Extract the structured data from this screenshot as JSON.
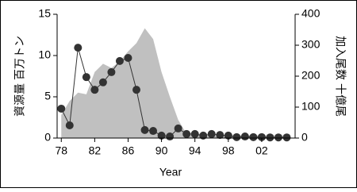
{
  "chart_data": {
    "type": "area-line",
    "x_label": "Year",
    "y_label": "資源量 百万トン",
    "y2_label": "加入尾数 十億尾",
    "x": [
      1978,
      1979,
      1980,
      1981,
      1982,
      1983,
      1984,
      1985,
      1986,
      1987,
      1988,
      1989,
      1990,
      1991,
      1992,
      1993,
      1994,
      1995,
      1996,
      1997,
      1998,
      1999,
      2000,
      2001,
      2002,
      2003,
      2004,
      2005
    ],
    "series": [
      {
        "type": "area",
        "axis": "y",
        "color": "#c0c0c0",
        "values": [
          2.8,
          4.5,
          5.5,
          5.3,
          8,
          9,
          8.5,
          9.3,
          10.5,
          11.5,
          13.3,
          12,
          8,
          5,
          2.2,
          0.5,
          0.4,
          0.3,
          0.3,
          0.3,
          0.3,
          0.3,
          0.3,
          0.3,
          0.3,
          0.3,
          0.3,
          0.3
        ]
      },
      {
        "type": "line",
        "axis": "y2",
        "color": "#333333",
        "values": [
          95,
          41,
          292,
          197,
          156,
          180,
          213,
          249,
          259,
          156,
          26,
          23,
          8,
          5,
          31,
          13,
          13,
          8,
          13,
          10,
          8,
          3,
          5,
          3,
          3,
          2,
          2,
          2
        ]
      }
    ],
    "xlim": [
      1977.5,
      2006
    ],
    "xticks": [
      {
        "value": 1978,
        "label": "78"
      },
      {
        "value": 1982,
        "label": "82"
      },
      {
        "value": 1986,
        "label": "86"
      },
      {
        "value": 1990,
        "label": "90"
      },
      {
        "value": 1994,
        "label": "94"
      },
      {
        "value": 1998,
        "label": "98"
      },
      {
        "value": 2002,
        "label": "02"
      }
    ],
    "ylim": [
      0,
      15
    ],
    "yticks": [
      0,
      5,
      10,
      15
    ],
    "y2lim": [
      0,
      400
    ],
    "y2ticks": [
      0,
      100,
      200,
      300,
      400
    ]
  }
}
